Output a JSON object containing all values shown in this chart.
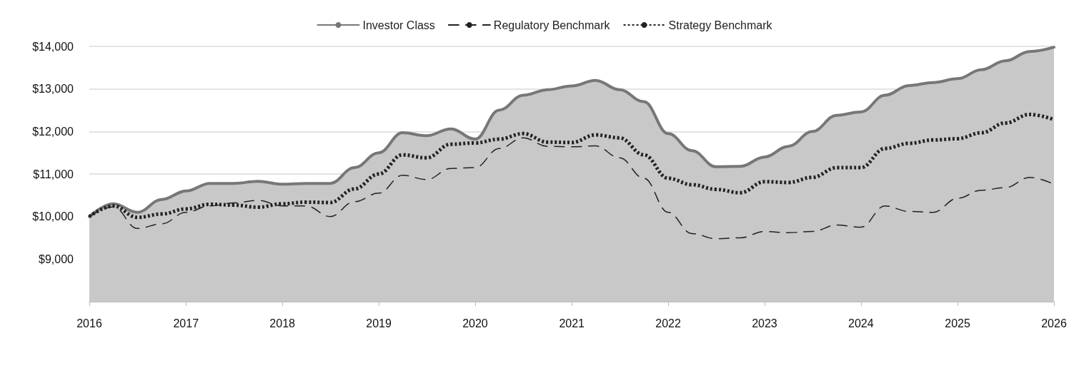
{
  "chart_data": {
    "type": "line",
    "legend": "top",
    "grid": "y",
    "marker": "none",
    "x": [
      "2016-01",
      "2016-04",
      "2016-07",
      "2016-10",
      "2017-01",
      "2017-04",
      "2017-07",
      "2017-10",
      "2018-01",
      "2018-04",
      "2018-07",
      "2018-10",
      "2019-01",
      "2019-04",
      "2019-07",
      "2019-10",
      "2020-01",
      "2020-04",
      "2020-07",
      "2020-10",
      "2021-01",
      "2021-04",
      "2021-07",
      "2021-10",
      "2022-01",
      "2022-04",
      "2022-07",
      "2022-10",
      "2023-01",
      "2023-04",
      "2023-07",
      "2023-10",
      "2024-01",
      "2024-04",
      "2024-07",
      "2024-10",
      "2025-01",
      "2025-04",
      "2025-07",
      "2025-10",
      "2026-01"
    ],
    "xlim": [
      "2016",
      "2026"
    ],
    "xticks": [
      "2016",
      "2017",
      "2018",
      "2019",
      "2020",
      "2021",
      "2022",
      "2023",
      "2024",
      "2025",
      "2026"
    ],
    "ylim": [
      8000,
      14000
    ],
    "yticks": [
      {
        "value": 9000,
        "label": "$9,000"
      },
      {
        "value": 10000,
        "label": "$10,000"
      },
      {
        "value": 11000,
        "label": "$11,000"
      },
      {
        "value": 12000,
        "label": "$12,000"
      },
      {
        "value": 13000,
        "label": "$13,000"
      },
      {
        "value": 14000,
        "label": "$14,000"
      }
    ],
    "series": [
      {
        "name": "Investor Class",
        "type": "area",
        "color": "#777777",
        "line_style": "solid",
        "values": [
          10000,
          10300,
          10100,
          10400,
          10600,
          10780,
          10780,
          10830,
          10760,
          10780,
          10780,
          11150,
          11500,
          11970,
          11900,
          12060,
          11820,
          12500,
          12850,
          12980,
          13070,
          13200,
          12980,
          12700,
          11950,
          11550,
          11170,
          11180,
          11400,
          11650,
          12000,
          12380,
          12460,
          12850,
          13080,
          13150,
          13240,
          13450,
          13660,
          13880,
          13980
        ]
      },
      {
        "name": "Regulatory Benchmark",
        "color": "#222222",
        "line_style": "dashed",
        "values": [
          10000,
          10230,
          9720,
          9830,
          10100,
          10250,
          10320,
          10380,
          10250,
          10250,
          10000,
          10350,
          10550,
          10970,
          10870,
          11130,
          11150,
          11600,
          11850,
          11650,
          11640,
          11660,
          11380,
          10900,
          10100,
          9600,
          9480,
          9500,
          9650,
          9620,
          9650,
          9800,
          9750,
          10250,
          10120,
          10100,
          10430,
          10620,
          10680,
          10920,
          10760
        ]
      },
      {
        "name": "Strategy Benchmark",
        "color": "#222222",
        "line_style": "dotted",
        "values": [
          10000,
          10250,
          9980,
          10060,
          10180,
          10290,
          10270,
          10220,
          10300,
          10340,
          10330,
          10650,
          11000,
          11450,
          11380,
          11700,
          11730,
          11820,
          11950,
          11750,
          11740,
          11920,
          11850,
          11450,
          10900,
          10750,
          10640,
          10560,
          10820,
          10800,
          10920,
          11150,
          11150,
          11600,
          11720,
          11800,
          11830,
          11970,
          12200,
          12400,
          12280
        ]
      }
    ]
  }
}
